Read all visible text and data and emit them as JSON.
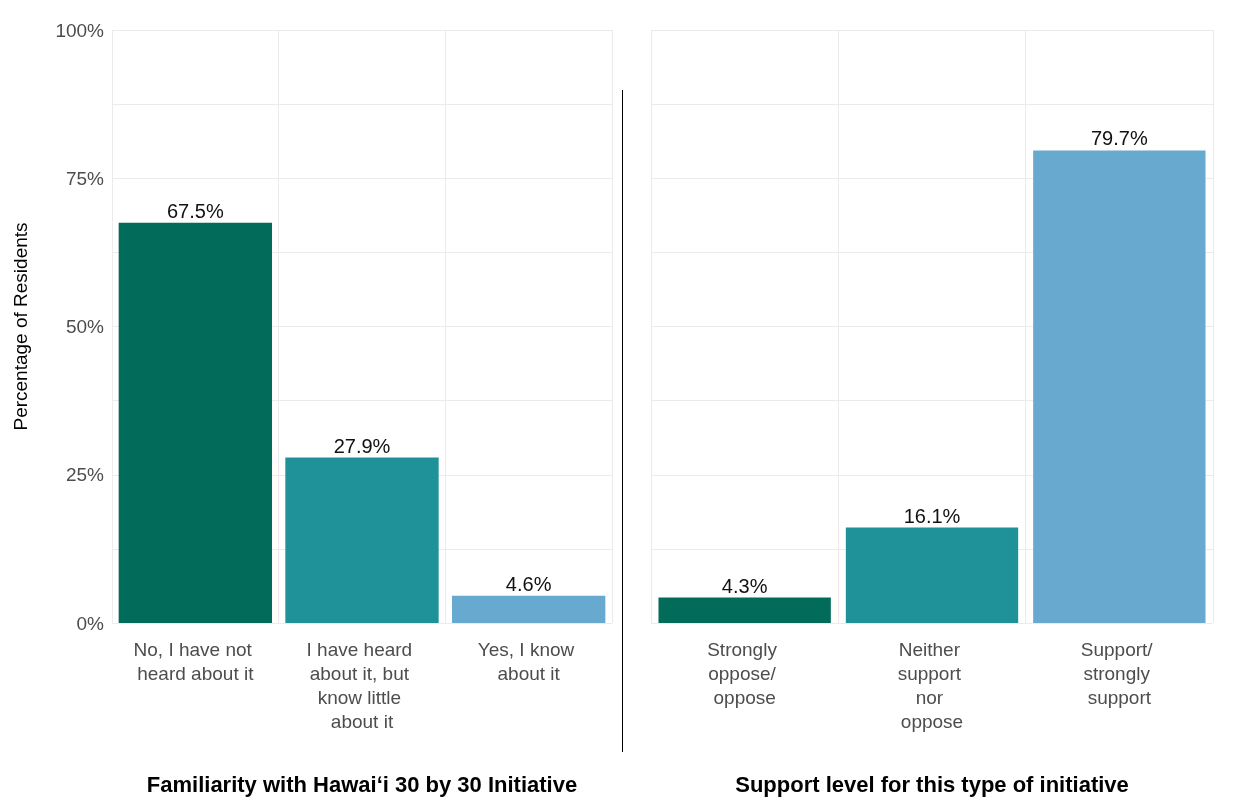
{
  "chart_data": [
    {
      "type": "bar",
      "xlabel": "Familiarity with Hawaiʻi 30 by 30 Initiative",
      "ylabel": "Percentage of Residents",
      "categories": [
        "No, I have not heard about it",
        "I have heard about it, but know little about it",
        "Yes, I know about it"
      ],
      "values": [
        67.5,
        27.9,
        4.6
      ],
      "colors": [
        "#036b5a",
        "#1f9199",
        "#67a9cf"
      ],
      "value_labels": [
        "67.5%",
        "27.9%",
        "4.6%"
      ],
      "ylim": [
        0,
        100
      ],
      "yticks": [
        {
          "value": 0,
          "label": "0%"
        },
        {
          "value": 12.5,
          "label": null
        },
        {
          "value": 25,
          "label": "25%"
        },
        {
          "value": 37.5,
          "label": null
        },
        {
          "value": 50,
          "label": "50%"
        },
        {
          "value": 62.5,
          "label": null
        },
        {
          "value": 75,
          "label": "75%"
        },
        {
          "value": 87.5,
          "label": null
        },
        {
          "value": 100,
          "label": "100%"
        }
      ],
      "grid": true
    },
    {
      "type": "bar",
      "xlabel": "Support level for this type of initiative",
      "categories": [
        "Strongly oppose/ oppose",
        "Neither support nor oppose",
        "Support/ strongly support"
      ],
      "values": [
        4.3,
        16.1,
        79.7
      ],
      "colors": [
        "#036b5a",
        "#1f9199",
        "#67a9cf"
      ],
      "value_labels": [
        "4.3%",
        "16.1%",
        "79.7%"
      ],
      "ylim": [
        0,
        100
      ],
      "yticks": [
        {
          "value": 0,
          "label": null
        },
        {
          "value": 12.5,
          "label": null
        },
        {
          "value": 25,
          "label": null
        },
        {
          "value": 37.5,
          "label": null
        },
        {
          "value": 50,
          "label": null
        },
        {
          "value": 62.5,
          "label": null
        },
        {
          "value": 75,
          "label": null
        },
        {
          "value": 87.5,
          "label": null
        },
        {
          "value": 100,
          "label": null
        }
      ],
      "grid": true,
      "tick_labels": "x"
    }
  ]
}
